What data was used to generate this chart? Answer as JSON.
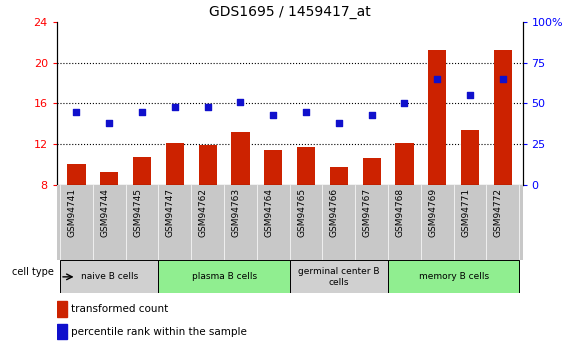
{
  "title": "GDS1695 / 1459417_at",
  "samples": [
    "GSM94741",
    "GSM94744",
    "GSM94745",
    "GSM94747",
    "GSM94762",
    "GSM94763",
    "GSM94764",
    "GSM94765",
    "GSM94766",
    "GSM94767",
    "GSM94768",
    "GSM94769",
    "GSM94771",
    "GSM94772"
  ],
  "transformed_count": [
    10.0,
    9.2,
    10.7,
    12.1,
    11.9,
    13.2,
    11.4,
    11.7,
    9.7,
    10.6,
    12.1,
    21.3,
    13.4,
    21.3
  ],
  "percentile_rank": [
    45,
    38,
    45,
    48,
    48,
    51,
    43,
    45,
    38,
    43,
    50,
    65,
    55,
    65
  ],
  "ylim_left": [
    8,
    24
  ],
  "ylim_right": [
    0,
    100
  ],
  "yticks_left": [
    8,
    12,
    16,
    20,
    24
  ],
  "yticks_right": [
    0,
    25,
    50,
    75,
    100
  ],
  "cell_groups": [
    {
      "label": "naive B cells",
      "start": 0,
      "end": 3,
      "color": "#d0d0d0"
    },
    {
      "label": "plasma B cells",
      "start": 3,
      "end": 7,
      "color": "#90ee90"
    },
    {
      "label": "germinal center B\ncells",
      "start": 7,
      "end": 10,
      "color": "#d0d0d0"
    },
    {
      "label": "memory B cells",
      "start": 10,
      "end": 14,
      "color": "#90ee90"
    }
  ],
  "bar_color": "#cc2200",
  "dot_color": "#1010cc",
  "bar_baseline": 8,
  "legend_labels": [
    "transformed count",
    "percentile rank within the sample"
  ],
  "background_color": "#ffffff",
  "title_fontsize": 10,
  "tick_fontsize": 6.5,
  "xtick_area_color": "#c8c8c8",
  "grid_yticks": [
    12,
    16,
    20
  ]
}
